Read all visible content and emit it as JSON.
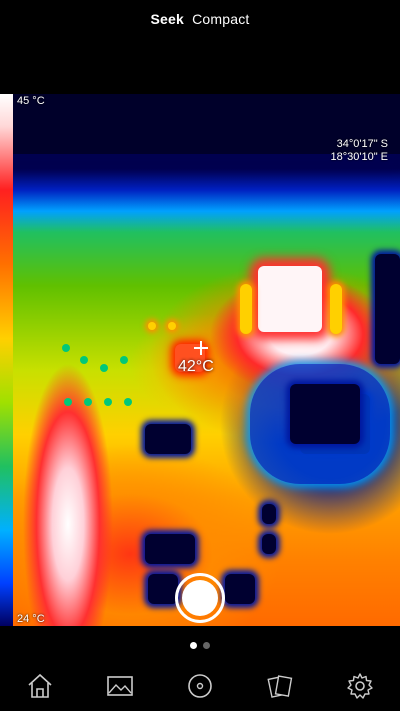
{
  "header": {
    "brand": "Seek",
    "model": "Compact"
  },
  "scale": {
    "max": "45 °C",
    "min": "24 °C",
    "palette": [
      "#ffffff",
      "#ff2020",
      "#ff7000",
      "#ffd000",
      "#20c060",
      "#00b0ff",
      "#0040ff",
      "#000060"
    ]
  },
  "gps": {
    "lat": "34°0'17\" S",
    "lon": "18°30'10\" E"
  },
  "spot": {
    "value": "42°C"
  },
  "pager": {
    "pages": 2,
    "active": 1
  },
  "nav": {
    "items": [
      "home-icon",
      "gallery-icon",
      "capture-mode-icon",
      "cards-icon",
      "settings-icon"
    ]
  }
}
